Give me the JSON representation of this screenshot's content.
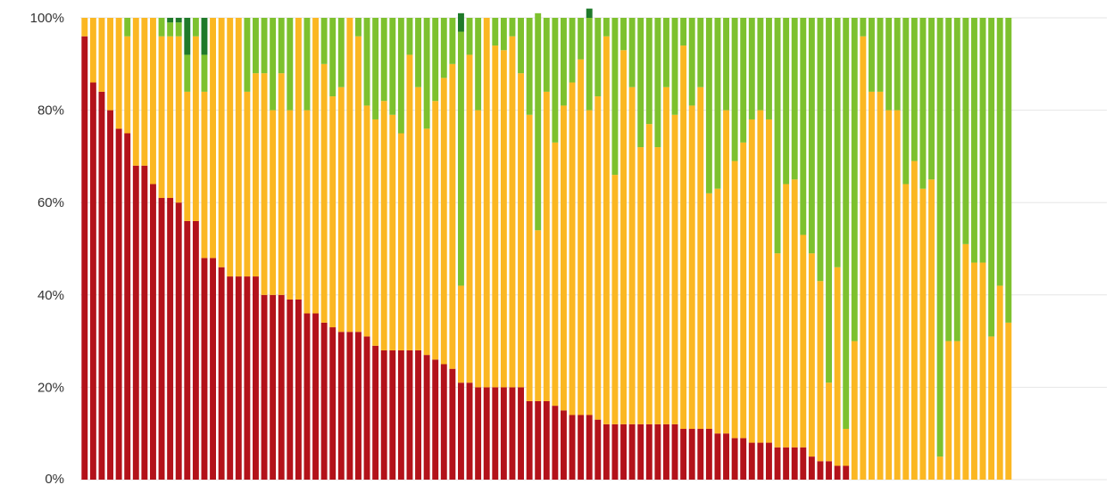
{
  "chart_data": {
    "type": "bar",
    "stacked": true,
    "normalized": true,
    "title": "",
    "xlabel": "",
    "ylabel": "",
    "ylim": [
      0,
      100
    ],
    "y_ticks": [
      "0%",
      "20%",
      "40%",
      "60%",
      "80%",
      "100%"
    ],
    "y_tick_values": [
      0,
      20,
      40,
      60,
      80,
      100
    ],
    "grid": true,
    "legend": "none",
    "colors": [
      "#b3121a",
      "#fbb722",
      "#7dc12e",
      "#1f7a2a"
    ],
    "series": [
      {
        "values": [
          96,
          86,
          84,
          80,
          76,
          75,
          68,
          68,
          64,
          61,
          61,
          60,
          56,
          56,
          48,
          48,
          46,
          44,
          44,
          44,
          44,
          40,
          40,
          40,
          39,
          39,
          36,
          36,
          34,
          33,
          32,
          32,
          32,
          31,
          29,
          28,
          28,
          28,
          28,
          28,
          27,
          26,
          25,
          24,
          21,
          21,
          20,
          20,
          20,
          20,
          20,
          20,
          17,
          17,
          17,
          16,
          15,
          14,
          14,
          14,
          13,
          12,
          12,
          12,
          12,
          12,
          12,
          12,
          12,
          12,
          11,
          11,
          11,
          11,
          10,
          10,
          9,
          9,
          8,
          8,
          8,
          7,
          7,
          7,
          7,
          5,
          4,
          4,
          3,
          3,
          0,
          0,
          0,
          0,
          0,
          0,
          0,
          0,
          0,
          0,
          0,
          0,
          0,
          0,
          0,
          0,
          0,
          0,
          0,
          0,
          0,
          0,
          0,
          0,
          0,
          0,
          0,
          0,
          0,
          0
        ]
      },
      {
        "values": [
          4,
          14,
          16,
          20,
          24,
          21,
          32,
          32,
          36,
          35,
          35,
          36,
          28,
          40,
          36,
          52,
          54,
          56,
          56,
          40,
          44,
          48,
          40,
          48,
          41,
          61,
          44,
          64,
          56,
          50,
          53,
          68,
          64,
          50,
          49,
          54,
          51,
          47,
          64,
          57,
          49,
          56,
          62,
          66,
          21,
          71,
          60,
          80,
          74,
          73,
          76,
          68,
          62,
          37,
          67,
          57,
          66,
          72,
          77,
          66,
          70,
          84,
          54,
          81,
          73,
          60,
          65,
          60,
          73,
          67,
          83,
          70,
          74,
          51,
          53,
          70,
          60,
          64,
          70,
          72,
          70,
          42,
          57,
          58,
          46,
          44,
          39,
          17,
          43,
          8,
          30,
          96,
          84,
          84,
          80,
          80,
          64,
          69,
          63,
          65,
          5,
          30,
          30,
          51,
          47,
          47,
          31,
          42,
          34,
          0,
          0,
          0,
          0,
          0,
          0,
          0,
          0,
          0,
          0,
          0
        ]
      },
      {
        "values": [
          0,
          0,
          0,
          0,
          0,
          4,
          0,
          0,
          0,
          4,
          3,
          3,
          8,
          4,
          8,
          0,
          0,
          0,
          0,
          16,
          12,
          12,
          20,
          12,
          20,
          0,
          20,
          0,
          10,
          17,
          15,
          0,
          4,
          19,
          22,
          18,
          21,
          25,
          8,
          15,
          24,
          18,
          13,
          10,
          55,
          8,
          20,
          0,
          6,
          7,
          4,
          12,
          21,
          47,
          16,
          27,
          19,
          14,
          9,
          20,
          17,
          4,
          34,
          7,
          15,
          28,
          23,
          28,
          15,
          21,
          6,
          19,
          15,
          38,
          37,
          20,
          31,
          27,
          22,
          20,
          22,
          51,
          36,
          35,
          47,
          51,
          57,
          79,
          54,
          89,
          70,
          4,
          16,
          16,
          20,
          20,
          36,
          31,
          37,
          35,
          95,
          70,
          70,
          49,
          53,
          53,
          69,
          58,
          66,
          0,
          0,
          0,
          0,
          0,
          0,
          0,
          0,
          0,
          0,
          0
        ]
      },
      {
        "values": [
          0,
          0,
          0,
          0,
          0,
          0,
          0,
          0,
          0,
          0,
          1,
          1,
          8,
          0,
          8,
          0,
          0,
          0,
          0,
          0,
          0,
          0,
          0,
          0,
          0,
          0,
          0,
          0,
          0,
          0,
          0,
          0,
          0,
          0,
          0,
          0,
          0,
          0,
          0,
          0,
          0,
          0,
          0,
          0,
          4,
          0,
          0,
          0,
          0,
          0,
          0,
          0,
          0,
          0,
          0,
          0,
          0,
          0,
          0,
          2,
          0,
          0,
          0,
          0,
          0,
          0,
          0,
          0,
          0,
          0,
          0,
          0,
          0,
          0,
          0,
          0,
          0,
          0,
          0,
          0,
          0,
          0,
          0,
          0,
          0,
          0,
          0,
          0,
          0,
          0,
          0,
          0,
          0,
          0,
          0,
          0,
          0,
          0,
          0,
          0,
          0,
          0,
          0,
          0,
          0,
          0,
          0,
          0,
          0,
          0,
          0,
          0,
          0,
          0,
          0,
          0,
          0,
          0,
          0,
          0
        ]
      }
    ]
  }
}
